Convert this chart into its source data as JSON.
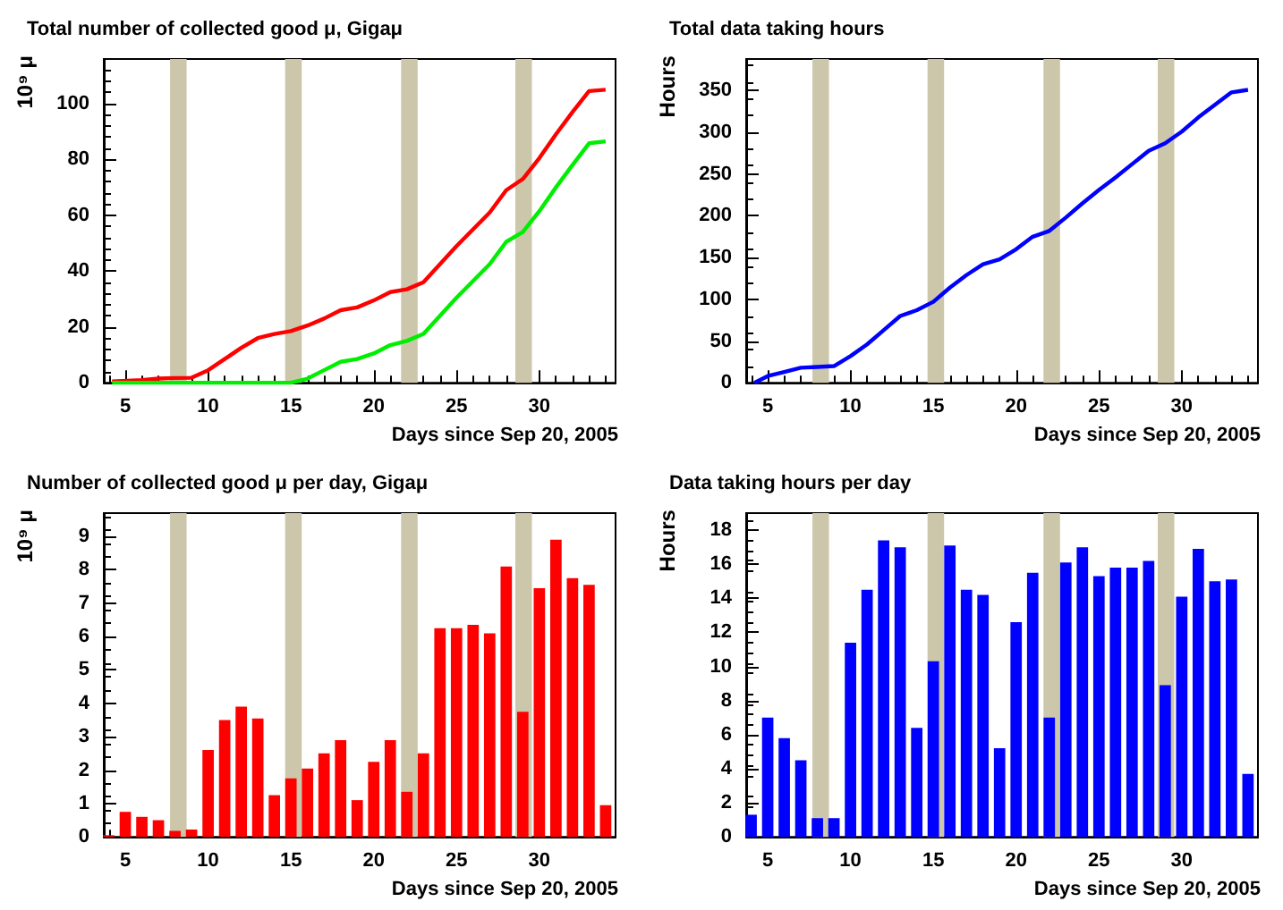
{
  "chart_data": [
    {
      "type": "line",
      "title": "Total number of collected good μ, Gigaμ",
      "xlabel": "Days since Sep 20, 2005",
      "ylabel": "10⁹ μ",
      "marker": "none",
      "x": [
        4.2,
        6,
        7,
        8,
        9,
        10,
        11,
        12,
        13,
        14,
        15,
        16,
        17,
        18,
        19,
        20,
        21,
        22,
        23,
        24,
        25,
        26,
        27,
        28,
        29,
        30,
        31,
        32,
        33,
        34
      ],
      "series": [
        {
          "color": "#ff0000",
          "values": [
            0.5,
            1,
            1.5,
            1.7,
            1.8,
            4.5,
            8.5,
            12.5,
            16,
            17.5,
            18.5,
            20.5,
            23,
            26,
            27,
            29.5,
            32.5,
            33.5,
            36,
            42.5,
            49,
            55,
            61,
            69,
            73,
            80.5,
            89,
            97,
            104.5,
            105
          ]
        },
        {
          "color": "#00ee00",
          "values": [
            0,
            0,
            0,
            0,
            0,
            0,
            0,
            0,
            0,
            0,
            0,
            1.5,
            4.5,
            7.5,
            8.5,
            10.5,
            13.5,
            15,
            17.5,
            24,
            30.5,
            36.5,
            42.5,
            50.5,
            54,
            61.5,
            70,
            78,
            85.8,
            86.5
          ]
        }
      ],
      "xlim": [
        3.7,
        34.6
      ],
      "xticks": [
        5,
        10,
        15,
        20,
        25,
        30
      ],
      "ylim": [
        0,
        116
      ],
      "yticks": [
        0,
        20,
        40,
        60,
        80,
        100
      ],
      "bands": [
        {
          "axis": "x",
          "from": 7.7,
          "to": 8.7,
          "color": "#ccc6aa"
        },
        {
          "axis": "x",
          "from": 14.65,
          "to": 15.65,
          "color": "#ccc6aa"
        },
        {
          "axis": "x",
          "from": 21.65,
          "to": 22.65,
          "color": "#ccc6aa"
        },
        {
          "axis": "x",
          "from": 28.55,
          "to": 29.55,
          "color": "#ccc6aa"
        }
      ]
    },
    {
      "type": "line",
      "title": "Total data taking hours",
      "xlabel": "Days since Sep 20, 2005",
      "ylabel": "Hours",
      "marker": "none",
      "x": [
        4.2,
        5,
        6,
        7,
        8,
        9,
        10,
        11,
        12,
        13,
        14,
        15,
        16,
        17,
        18,
        19,
        20,
        21,
        22,
        23,
        24,
        25,
        26,
        27,
        28,
        29,
        30,
        31,
        32,
        33,
        34
      ],
      "series": [
        {
          "color": "#0000ff",
          "values": [
            0,
            8,
            13,
            18,
            19,
            20,
            32,
            46,
            63,
            80,
            87,
            97,
            114,
            129,
            142,
            148,
            160,
            175,
            182,
            198,
            215,
            231,
            246,
            262,
            278,
            287,
            301,
            318,
            333,
            348,
            351
          ]
        }
      ],
      "xlim": [
        3.7,
        34.6
      ],
      "xticks": [
        5,
        10,
        15,
        20,
        25,
        30
      ],
      "ylim": [
        0,
        388
      ],
      "yticks": [
        0,
        50,
        100,
        150,
        200,
        250,
        300,
        350
      ],
      "bands": [
        {
          "axis": "x",
          "from": 7.7,
          "to": 8.7,
          "color": "#ccc6aa"
        },
        {
          "axis": "x",
          "from": 14.65,
          "to": 15.65,
          "color": "#ccc6aa"
        },
        {
          "axis": "x",
          "from": 21.65,
          "to": 22.65,
          "color": "#ccc6aa"
        },
        {
          "axis": "x",
          "from": 28.55,
          "to": 29.55,
          "color": "#ccc6aa"
        }
      ]
    },
    {
      "type": "bar",
      "title": "Number of collected good μ per day, Gigaμ",
      "xlabel": "Days since Sep 20, 2005",
      "ylabel": "10⁹ μ",
      "x": [
        4,
        5,
        6,
        7,
        8,
        9,
        10,
        11,
        12,
        13,
        14,
        15,
        16,
        17,
        18,
        19,
        20,
        21,
        22,
        23,
        24,
        25,
        26,
        27,
        28,
        29,
        30,
        31,
        32,
        33,
        34
      ],
      "series": [
        {
          "color": "#ff0000",
          "values": [
            0.05,
            0.75,
            0.6,
            0.5,
            0.18,
            0.22,
            2.6,
            3.5,
            3.9,
            3.55,
            1.25,
            1.75,
            2.05,
            2.5,
            2.9,
            1.1,
            2.25,
            2.9,
            1.35,
            2.5,
            6.25,
            6.25,
            6.35,
            6.1,
            8.1,
            3.75,
            7.45,
            8.9,
            7.75,
            7.55,
            0.95
          ]
        }
      ],
      "xlim": [
        3.7,
        34.6
      ],
      "xticks": [
        5,
        10,
        15,
        20,
        25,
        30
      ],
      "ylim": [
        0,
        9.7
      ],
      "yticks": [
        0,
        1,
        2,
        3,
        4,
        5,
        6,
        7,
        8,
        9
      ],
      "bands": [
        {
          "axis": "x",
          "from": 7.7,
          "to": 8.7,
          "color": "#ccc6aa"
        },
        {
          "axis": "x",
          "from": 14.65,
          "to": 15.65,
          "color": "#ccc6aa"
        },
        {
          "axis": "x",
          "from": 21.65,
          "to": 22.65,
          "color": "#ccc6aa"
        },
        {
          "axis": "x",
          "from": 28.55,
          "to": 29.55,
          "color": "#ccc6aa"
        }
      ]
    },
    {
      "type": "bar",
      "title": "Data taking hours per day",
      "xlabel": "Days since Sep 20, 2005",
      "ylabel": "Hours",
      "x": [
        4,
        5,
        6,
        7,
        8,
        9,
        10,
        11,
        12,
        13,
        14,
        15,
        16,
        17,
        18,
        19,
        20,
        21,
        22,
        23,
        24,
        25,
        26,
        27,
        28,
        29,
        30,
        31,
        32,
        33,
        34
      ],
      "series": [
        {
          "color": "#0000ff",
          "values": [
            1.3,
            7.0,
            5.8,
            4.5,
            1.1,
            1.1,
            11.4,
            14.5,
            17.4,
            17.0,
            6.4,
            10.3,
            17.1,
            14.5,
            14.2,
            5.2,
            12.6,
            15.5,
            7.0,
            16.1,
            17.0,
            15.3,
            15.8,
            15.8,
            16.2,
            8.9,
            14.1,
            16.9,
            15.0,
            15.1,
            3.7
          ]
        }
      ],
      "xlim": [
        3.7,
        34.6
      ],
      "xticks": [
        5,
        10,
        15,
        20,
        25,
        30
      ],
      "ylim": [
        0,
        19
      ],
      "yticks": [
        0,
        2,
        4,
        6,
        8,
        10,
        12,
        14,
        16,
        18
      ],
      "bands": [
        {
          "axis": "x",
          "from": 7.7,
          "to": 8.7,
          "color": "#ccc6aa"
        },
        {
          "axis": "x",
          "from": 14.65,
          "to": 15.65,
          "color": "#ccc6aa"
        },
        {
          "axis": "x",
          "from": 21.65,
          "to": 22.65,
          "color": "#ccc6aa"
        },
        {
          "axis": "x",
          "from": 28.55,
          "to": 29.55,
          "color": "#ccc6aa"
        }
      ]
    }
  ]
}
